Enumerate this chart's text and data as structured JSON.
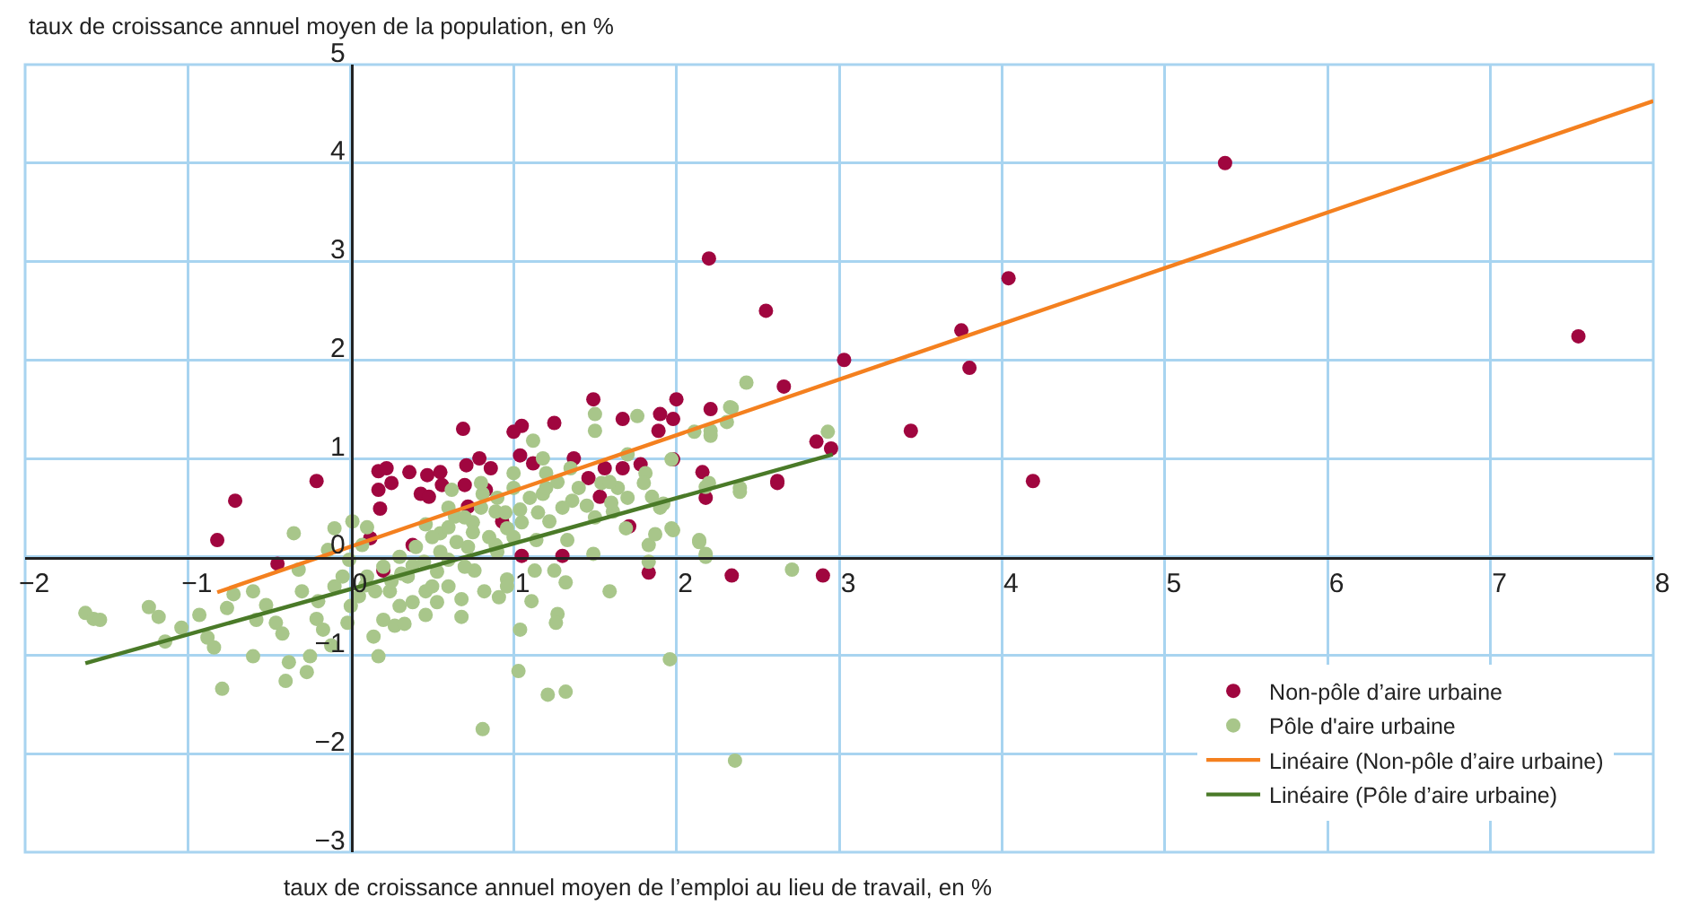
{
  "chart_data": {
    "type": "scatter",
    "xlabel": "taux de croissance annuel moyen de l’emploi au lieu de travail, en %",
    "ylabel": "taux de croissance annuel moyen de la population, en %",
    "xlim": [
      -2,
      8
    ],
    "xticks": [
      -2,
      -1,
      0,
      1,
      2,
      3,
      4,
      5,
      6,
      7,
      8
    ],
    "ylim": [
      -3,
      5
    ],
    "yticks": [
      -3,
      -2,
      -1,
      0,
      1,
      2,
      3,
      4,
      5
    ],
    "grid": true,
    "legend": "bottom right",
    "series": [
      {
        "name": "Non-pôle d’aire urbaine",
        "color": "#a0063f",
        "marker": "circle",
        "x": [
          5.37,
          7.54,
          2.2,
          2.55,
          4.04,
          3.75,
          3.8,
          3.03,
          2.66,
          3.44,
          4.19,
          2.86,
          2.95,
          2.62,
          2.16,
          2.18,
          2.21,
          2.0,
          1.98,
          2.34,
          2.9,
          1.49,
          1.67,
          1.9,
          1.89,
          1.05,
          1.25,
          1.0,
          0.69,
          1.04,
          1.12,
          0.79,
          0.71,
          0.86,
          1.37,
          1.56,
          1.67,
          1.78,
          1.98,
          -0.21,
          0.17,
          0.22,
          0.36,
          0.47,
          0.55,
          -0.71,
          -0.82,
          -0.45,
          0.25,
          0.17,
          0.18,
          0.43,
          0.48,
          0.56,
          0.7,
          0.72,
          0.83,
          1.46,
          1.53,
          1.71,
          1.83,
          1.05,
          1.3,
          0.93,
          0.12,
          0.38,
          0.2,
          2.62
        ],
        "values": [
          4.0,
          2.24,
          3.03,
          2.5,
          2.83,
          2.3,
          1.92,
          2.0,
          1.73,
          1.28,
          0.77,
          1.17,
          1.1,
          0.77,
          0.86,
          0.6,
          1.5,
          1.6,
          1.4,
          -0.19,
          -0.19,
          1.6,
          1.4,
          1.45,
          1.28,
          1.33,
          1.36,
          1.27,
          1.3,
          1.03,
          0.95,
          1.0,
          0.93,
          0.9,
          1.0,
          0.9,
          0.9,
          0.94,
          0.99,
          0.77,
          0.87,
          0.9,
          0.86,
          0.83,
          0.86,
          0.57,
          0.17,
          -0.07,
          0.75,
          0.68,
          0.49,
          0.64,
          0.61,
          0.73,
          0.73,
          0.51,
          0.68,
          0.8,
          0.61,
          0.31,
          -0.16,
          0.01,
          0.01,
          0.36,
          0.19,
          0.12,
          -0.14,
          0.75
        ]
      },
      {
        "name": "Pôle d'aire urbaine",
        "color": "#a8c68a",
        "marker": "circle",
        "x": [
          -1.63,
          -1.58,
          -1.54,
          -1.24,
          -1.18,
          -1.14,
          -1.04,
          -0.93,
          -0.88,
          -0.84,
          -0.79,
          -0.76,
          -0.72,
          -0.6,
          -0.6,
          -0.58,
          -0.52,
          -0.46,
          -0.42,
          -0.4,
          -0.38,
          -0.35,
          -0.32,
          -0.27,
          -0.25,
          -0.3,
          -0.21,
          -0.17,
          -0.14,
          -0.1,
          -0.12,
          0.01,
          -0.01,
          -0.02,
          0.07,
          0.14,
          0.17,
          0.09,
          0.2,
          0.27,
          0.33,
          0.38,
          0.46,
          0.24,
          0.31,
          0.38,
          0.46,
          0.53,
          0.6,
          0.68,
          0.68,
          0.62,
          0.46,
          0.55,
          0.64,
          0.75,
          0.72,
          0.6,
          0.53,
          0.76,
          0.82,
          0.81,
          0.89,
          0.96,
          0.89,
          0.96,
          0.91,
          0.96,
          1.04,
          1.04,
          1.03,
          1.11,
          1.13,
          1.14,
          1.18,
          1.22,
          1.25,
          1.27,
          1.26,
          1.32,
          1.21,
          1.32,
          1.33,
          1.36,
          1.45,
          1.49,
          1.59,
          1.54,
          1.64,
          1.61,
          1.69,
          1.83,
          1.85,
          1.92,
          1.97,
          1.87,
          1.83,
          1.96,
          2.14,
          2.18,
          2.2,
          2.39,
          2.36,
          2.71,
          0.81,
          2.43,
          2.34,
          2.31,
          2.11,
          2.21,
          2.93,
          2.18,
          2.39,
          2.14,
          2.18,
          1.98,
          1.5,
          1.5,
          1.76,
          1.12,
          1.18,
          2.33,
          2.21,
          1.97,
          1.81,
          1.7,
          1.35,
          1.27,
          1.59,
          0.1,
          0.2,
          0.3,
          0.4,
          0.5,
          0.6,
          0.7,
          0.8,
          0.9,
          1.0,
          1.1,
          1.2,
          1.3,
          0.15,
          0.25,
          0.35,
          0.45,
          0.55,
          0.65,
          0.75,
          0.85,
          0.95,
          1.05,
          1.15,
          0.05,
          0.3,
          0.5,
          0.7,
          0.9,
          1.0,
          0.6,
          0.8,
          1.0,
          1.2,
          1.4,
          1.5,
          1.6,
          1.7,
          1.8,
          1.9,
          -0.1,
          -0.2,
          0.0,
          -0.05,
          0.1
        ],
        "values": [
          -0.57,
          -0.63,
          -0.64,
          -0.51,
          -0.61,
          -0.86,
          -0.72,
          -0.59,
          -0.82,
          -0.92,
          -1.34,
          -0.52,
          -0.38,
          -0.35,
          -1.01,
          -0.64,
          -0.49,
          -0.67,
          -0.78,
          -1.26,
          -1.07,
          0.24,
          -0.13,
          -1.17,
          -1.01,
          -0.35,
          -0.63,
          -0.74,
          0.07,
          0.29,
          -0.9,
          0.36,
          -0.03,
          -0.67,
          0.12,
          -0.81,
          -1.01,
          -0.29,
          -0.64,
          -0.7,
          -0.68,
          -0.46,
          -0.59,
          -0.35,
          -0.17,
          -0.09,
          -0.35,
          -0.46,
          -0.3,
          -0.61,
          -0.43,
          0.68,
          0.33,
          0.24,
          0.41,
          0.35,
          0.1,
          -0.03,
          -0.15,
          -0.14,
          -0.35,
          0.64,
          0.46,
          0.29,
          0.12,
          -0.23,
          -0.41,
          -0.3,
          0.48,
          -0.74,
          -1.16,
          -0.45,
          -0.14,
          0.17,
          0.64,
          0.36,
          -0.14,
          -0.58,
          -0.67,
          -0.26,
          -1.4,
          -1.37,
          0.17,
          0.57,
          0.52,
          0.03,
          -0.35,
          0.75,
          0.7,
          0.46,
          0.29,
          0.12,
          0.61,
          0.54,
          0.29,
          0.23,
          -0.05,
          -1.04,
          0.17,
          0.03,
          0.75,
          0.7,
          -2.07,
          -0.13,
          -1.75,
          1.77,
          1.51,
          1.37,
          1.27,
          1.23,
          1.27,
          0.71,
          0.66,
          0.15,
          0.0,
          0.27,
          1.45,
          1.28,
          1.43,
          1.18,
          1.0,
          1.52,
          1.28,
          0.99,
          0.85,
          1.04,
          0.9,
          0.76,
          0.76,
          -0.2,
          -0.1,
          0.0,
          0.1,
          0.2,
          0.3,
          0.4,
          0.5,
          0.6,
          0.7,
          0.6,
          0.7,
          0.5,
          -0.35,
          -0.25,
          -0.2,
          -0.05,
          0.05,
          0.15,
          0.25,
          0.2,
          0.45,
          0.35,
          0.45,
          -0.4,
          -0.5,
          -0.3,
          -0.1,
          0.05,
          0.2,
          0.5,
          0.75,
          0.85,
          0.85,
          0.7,
          0.4,
          0.55,
          0.6,
          0.75,
          0.5,
          -0.3,
          -0.45,
          -0.5,
          -0.2,
          0.3
        ]
      },
      {
        "name": "Linéaire (Non-pôle d’aire urbaine)",
        "color": "#f4801f",
        "type": "line",
        "x": [
          -0.82,
          8
        ],
        "values": [
          -0.36,
          4.63
        ]
      },
      {
        "name": "Linéaire (Pôle d’aire urbaine)",
        "color": "#4a7a28",
        "type": "line",
        "x": [
          -1.63,
          2.96
        ],
        "values": [
          -1.08,
          1.04
        ]
      }
    ]
  }
}
